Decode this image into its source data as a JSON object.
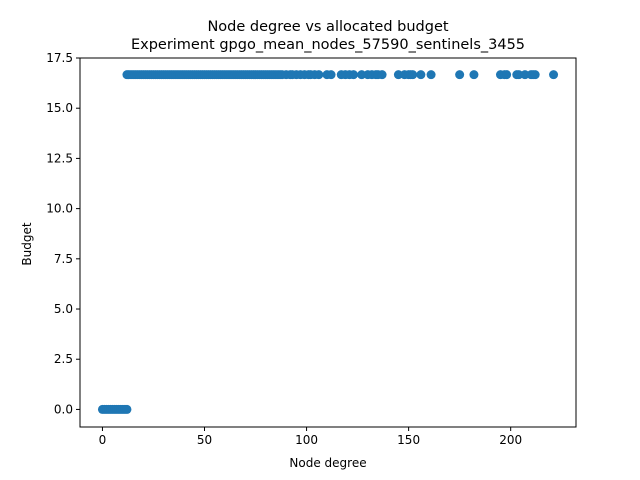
{
  "chart_data": {
    "type": "scatter",
    "title": "Node degree vs allocated budget",
    "subtitle": "Experiment gpgo_mean_nodes_57590_sentinels_3455",
    "xlabel": "Node degree",
    "ylabel": "Budget",
    "xlim": [
      -11,
      232
    ],
    "ylim": [
      -0.875,
      17.5
    ],
    "xticks": [
      0,
      50,
      100,
      150,
      200
    ],
    "xtick_labels": [
      "0",
      "50",
      "100",
      "150",
      "200"
    ],
    "yticks": [
      0.0,
      2.5,
      5.0,
      7.5,
      10.0,
      12.5,
      15.0,
      17.5
    ],
    "ytick_labels": [
      "0.0",
      "2.5",
      "5.0",
      "7.5",
      "10.0",
      "12.5",
      "15.0",
      "17.5"
    ],
    "grid": false,
    "legend": "none",
    "marker_color": "#1f77b4",
    "series": [
      {
        "points": [
          {
            "x": 0,
            "y": 0
          },
          {
            "x": 1,
            "y": 0
          },
          {
            "x": 2,
            "y": 0
          },
          {
            "x": 3,
            "y": 0
          },
          {
            "x": 4,
            "y": 0
          },
          {
            "x": 5,
            "y": 0
          },
          {
            "x": 6,
            "y": 0
          },
          {
            "x": 7,
            "y": 0
          },
          {
            "x": 8,
            "y": 0
          },
          {
            "x": 9,
            "y": 0
          },
          {
            "x": 10,
            "y": 0
          },
          {
            "x": 11,
            "y": 0
          },
          {
            "x": 12,
            "y": 0
          },
          {
            "x": 12,
            "y": 16.67
          },
          {
            "x": 13,
            "y": 16.67
          },
          {
            "x": 14,
            "y": 16.67
          },
          {
            "x": 15,
            "y": 16.67
          },
          {
            "x": 16,
            "y": 16.67
          },
          {
            "x": 17,
            "y": 16.67
          },
          {
            "x": 18,
            "y": 16.67
          },
          {
            "x": 19,
            "y": 16.67
          },
          {
            "x": 20,
            "y": 16.67
          },
          {
            "x": 21,
            "y": 16.67
          },
          {
            "x": 22,
            "y": 16.67
          },
          {
            "x": 23,
            "y": 16.67
          },
          {
            "x": 24,
            "y": 16.67
          },
          {
            "x": 25,
            "y": 16.67
          },
          {
            "x": 26,
            "y": 16.67
          },
          {
            "x": 27,
            "y": 16.67
          },
          {
            "x": 28,
            "y": 16.67
          },
          {
            "x": 29,
            "y": 16.67
          },
          {
            "x": 30,
            "y": 16.67
          },
          {
            "x": 31,
            "y": 16.67
          },
          {
            "x": 32,
            "y": 16.67
          },
          {
            "x": 33,
            "y": 16.67
          },
          {
            "x": 34,
            "y": 16.67
          },
          {
            "x": 35,
            "y": 16.67
          },
          {
            "x": 36,
            "y": 16.67
          },
          {
            "x": 37,
            "y": 16.67
          },
          {
            "x": 38,
            "y": 16.67
          },
          {
            "x": 39,
            "y": 16.67
          },
          {
            "x": 40,
            "y": 16.67
          },
          {
            "x": 41,
            "y": 16.67
          },
          {
            "x": 42,
            "y": 16.67
          },
          {
            "x": 43,
            "y": 16.67
          },
          {
            "x": 44,
            "y": 16.67
          },
          {
            "x": 45,
            "y": 16.67
          },
          {
            "x": 46,
            "y": 16.67
          },
          {
            "x": 47,
            "y": 16.67
          },
          {
            "x": 48,
            "y": 16.67
          },
          {
            "x": 49,
            "y": 16.67
          },
          {
            "x": 50,
            "y": 16.67
          },
          {
            "x": 51,
            "y": 16.67
          },
          {
            "x": 52,
            "y": 16.67
          },
          {
            "x": 53,
            "y": 16.67
          },
          {
            "x": 54,
            "y": 16.67
          },
          {
            "x": 55,
            "y": 16.67
          },
          {
            "x": 56,
            "y": 16.67
          },
          {
            "x": 57,
            "y": 16.67
          },
          {
            "x": 58,
            "y": 16.67
          },
          {
            "x": 59,
            "y": 16.67
          },
          {
            "x": 60,
            "y": 16.67
          },
          {
            "x": 61,
            "y": 16.67
          },
          {
            "x": 62,
            "y": 16.67
          },
          {
            "x": 63,
            "y": 16.67
          },
          {
            "x": 64,
            "y": 16.67
          },
          {
            "x": 65,
            "y": 16.67
          },
          {
            "x": 66,
            "y": 16.67
          },
          {
            "x": 67,
            "y": 16.67
          },
          {
            "x": 68,
            "y": 16.67
          },
          {
            "x": 69,
            "y": 16.67
          },
          {
            "x": 70,
            "y": 16.67
          },
          {
            "x": 71,
            "y": 16.67
          },
          {
            "x": 72,
            "y": 16.67
          },
          {
            "x": 73,
            "y": 16.67
          },
          {
            "x": 74,
            "y": 16.67
          },
          {
            "x": 75,
            "y": 16.67
          },
          {
            "x": 76,
            "y": 16.67
          },
          {
            "x": 77,
            "y": 16.67
          },
          {
            "x": 78,
            "y": 16.67
          },
          {
            "x": 79,
            "y": 16.67
          },
          {
            "x": 80,
            "y": 16.67
          },
          {
            "x": 81,
            "y": 16.67
          },
          {
            "x": 82,
            "y": 16.67
          },
          {
            "x": 83,
            "y": 16.67
          },
          {
            "x": 84,
            "y": 16.67
          },
          {
            "x": 85,
            "y": 16.67
          },
          {
            "x": 86,
            "y": 16.67
          },
          {
            "x": 87,
            "y": 16.67
          },
          {
            "x": 88,
            "y": 16.67
          },
          {
            "x": 90,
            "y": 16.67
          },
          {
            "x": 92,
            "y": 16.67
          },
          {
            "x": 93,
            "y": 16.67
          },
          {
            "x": 95,
            "y": 16.67
          },
          {
            "x": 97,
            "y": 16.67
          },
          {
            "x": 99,
            "y": 16.67
          },
          {
            "x": 101,
            "y": 16.67
          },
          {
            "x": 102,
            "y": 16.67
          },
          {
            "x": 104,
            "y": 16.67
          },
          {
            "x": 106,
            "y": 16.67
          },
          {
            "x": 110,
            "y": 16.67
          },
          {
            "x": 112,
            "y": 16.67
          },
          {
            "x": 117,
            "y": 16.67
          },
          {
            "x": 119,
            "y": 16.67
          },
          {
            "x": 121,
            "y": 16.67
          },
          {
            "x": 123,
            "y": 16.67
          },
          {
            "x": 127,
            "y": 16.67
          },
          {
            "x": 130,
            "y": 16.67
          },
          {
            "x": 132,
            "y": 16.67
          },
          {
            "x": 134,
            "y": 16.67
          },
          {
            "x": 135,
            "y": 16.67
          },
          {
            "x": 137,
            "y": 16.67
          },
          {
            "x": 145,
            "y": 16.67
          },
          {
            "x": 148,
            "y": 16.67
          },
          {
            "x": 150,
            "y": 16.67
          },
          {
            "x": 151,
            "y": 16.67
          },
          {
            "x": 152,
            "y": 16.67
          },
          {
            "x": 156,
            "y": 16.67
          },
          {
            "x": 161,
            "y": 16.67
          },
          {
            "x": 175,
            "y": 16.67
          },
          {
            "x": 182,
            "y": 16.67
          },
          {
            "x": 195,
            "y": 16.67
          },
          {
            "x": 197,
            "y": 16.67
          },
          {
            "x": 198,
            "y": 16.67
          },
          {
            "x": 203,
            "y": 16.67
          },
          {
            "x": 204,
            "y": 16.67
          },
          {
            "x": 207,
            "y": 16.67
          },
          {
            "x": 210,
            "y": 16.67
          },
          {
            "x": 211,
            "y": 16.67
          },
          {
            "x": 212,
            "y": 16.67
          },
          {
            "x": 221,
            "y": 16.67
          }
        ]
      }
    ]
  }
}
